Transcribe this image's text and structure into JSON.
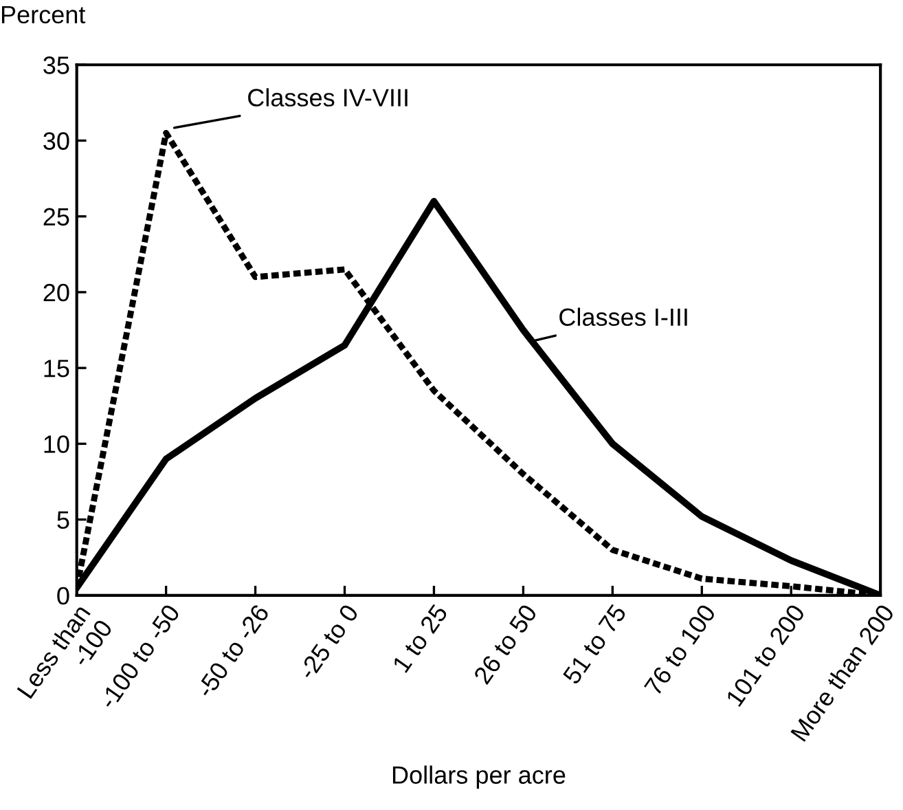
{
  "chart_data": {
    "type": "line",
    "xlabel": "Dollars per acre",
    "ylabel": "Percent",
    "categories": [
      "Less than\n-100",
      "-100 to -50",
      "-50 to -26",
      "-25 to 0",
      "1 to 25",
      "26 to 50",
      "51 to 75",
      "76 to 100",
      "101 to 200",
      "More than 200"
    ],
    "series": [
      {
        "name": "Classes I-III",
        "color": "#000000",
        "line_style": "solid",
        "values": [
          0.5,
          9,
          13,
          16.5,
          26,
          17.5,
          10,
          5.2,
          2.3,
          0
        ]
      },
      {
        "name": "Classes IV-VIII",
        "color": "#000000",
        "line_style": "dashed",
        "values": [
          0.5,
          30.5,
          21,
          21.5,
          13.5,
          8,
          3,
          1.1,
          0.6,
          0
        ]
      }
    ],
    "ylim": [
      0,
      35
    ],
    "yticks": [
      0,
      5,
      10,
      15,
      20,
      25,
      30,
      35
    ],
    "grid": false,
    "legend": false,
    "marker": "none"
  }
}
